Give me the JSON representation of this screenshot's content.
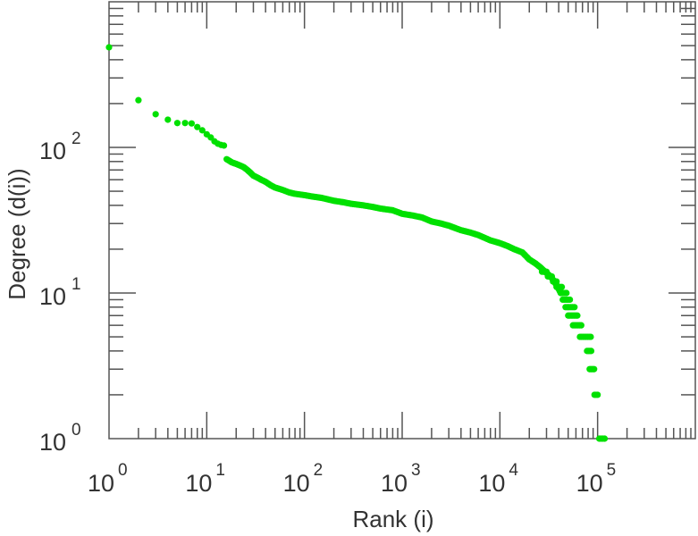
{
  "chart_data": {
    "type": "scatter",
    "title": "",
    "xlabel": "Rank (i)",
    "ylabel": "Degree (d(i))",
    "xscale": "log",
    "yscale": "log",
    "xlim": [
      1,
      1000000
    ],
    "ylim": [
      1,
      1000
    ],
    "grid": false,
    "color": "#00e000",
    "x_ticks": [
      {
        "base": "10",
        "exp": "0",
        "value": 1
      },
      {
        "base": "10",
        "exp": "1",
        "value": 10
      },
      {
        "base": "10",
        "exp": "2",
        "value": 100
      },
      {
        "base": "10",
        "exp": "3",
        "value": 1000
      },
      {
        "base": "10",
        "exp": "4",
        "value": 10000
      },
      {
        "base": "10",
        "exp": "5",
        "value": 100000
      }
    ],
    "y_ticks": [
      {
        "base": "10",
        "exp": "0",
        "value": 1
      },
      {
        "base": "10",
        "exp": "1",
        "value": 10
      },
      {
        "base": "10",
        "exp": "2",
        "value": 100
      }
    ],
    "segments": [
      [
        [
          1,
          487
        ]
      ],
      [
        [
          2,
          211
        ]
      ],
      [
        [
          3,
          169
        ]
      ],
      [
        [
          4,
          155
        ]
      ],
      [
        [
          5,
          147
        ]
      ],
      [
        [
          6,
          147
        ]
      ],
      [
        [
          7,
          146
        ]
      ],
      [
        [
          8,
          138
        ]
      ],
      [
        [
          9,
          131
        ]
      ],
      [
        [
          10,
          123
        ]
      ],
      [
        [
          11,
          117
        ]
      ],
      [
        [
          12,
          110
        ]
      ],
      [
        [
          13,
          106
        ]
      ],
      [
        [
          14,
          104
        ]
      ],
      [
        [
          15,
          103
        ]
      ],
      [
        [
          16,
          83
        ],
        [
          17,
          81
        ],
        [
          18,
          79
        ],
        [
          20,
          77
        ],
        [
          22,
          75
        ],
        [
          24,
          73
        ],
        [
          26,
          70
        ],
        [
          28,
          67
        ],
        [
          30,
          64
        ],
        [
          33,
          62
        ],
        [
          36,
          60
        ],
        [
          40,
          58
        ],
        [
          45,
          55
        ],
        [
          50,
          53
        ],
        [
          60,
          51
        ],
        [
          70,
          49
        ],
        [
          80,
          48
        ],
        [
          100,
          47
        ],
        [
          120,
          46
        ],
        [
          150,
          45
        ],
        [
          200,
          43
        ],
        [
          250,
          42
        ],
        [
          300,
          41
        ],
        [
          400,
          40
        ],
        [
          500,
          39
        ],
        [
          600,
          38
        ],
        [
          800,
          37
        ],
        [
          1000,
          35
        ],
        [
          1300,
          34
        ],
        [
          1600,
          33
        ],
        [
          2000,
          31
        ],
        [
          2500,
          30
        ],
        [
          3000,
          29
        ],
        [
          4000,
          27
        ],
        [
          5000,
          26
        ],
        [
          6000,
          25
        ],
        [
          8000,
          23
        ],
        [
          10000,
          22
        ],
        [
          12000,
          21
        ],
        [
          14000,
          20
        ],
        [
          17000,
          19
        ],
        [
          20000,
          17
        ],
        [
          23000,
          16
        ],
        [
          26000,
          15
        ],
        [
          29000,
          14
        ],
        [
          33000,
          13
        ],
        [
          36000,
          12
        ],
        [
          39000,
          11
        ],
        [
          42000,
          10
        ]
      ],
      [
        [
          27000,
          14
        ],
        [
          30000,
          14
        ]
      ],
      [
        [
          31000,
          13
        ],
        [
          34000,
          13
        ]
      ],
      [
        [
          35000,
          12
        ],
        [
          38000,
          12
        ]
      ],
      [
        [
          38000,
          11
        ],
        [
          43000,
          11
        ]
      ],
      [
        [
          42000,
          10
        ],
        [
          48000,
          10
        ]
      ],
      [
        [
          44000,
          9
        ],
        [
          52000,
          9
        ]
      ],
      [
        [
          47000,
          8
        ],
        [
          58000,
          8
        ]
      ],
      [
        [
          50000,
          7
        ],
        [
          62000,
          7
        ]
      ],
      [
        [
          56000,
          6
        ],
        [
          68000,
          6
        ]
      ],
      [
        [
          66000,
          5
        ],
        [
          85000,
          5
        ]
      ],
      [
        [
          78000,
          4
        ],
        [
          86000,
          4
        ]
      ],
      [
        [
          83000,
          3
        ],
        [
          92000,
          3
        ]
      ],
      [
        [
          93000,
          2
        ],
        [
          100000,
          2
        ]
      ],
      [
        [
          104000,
          1
        ],
        [
          118000,
          1
        ]
      ]
    ]
  }
}
